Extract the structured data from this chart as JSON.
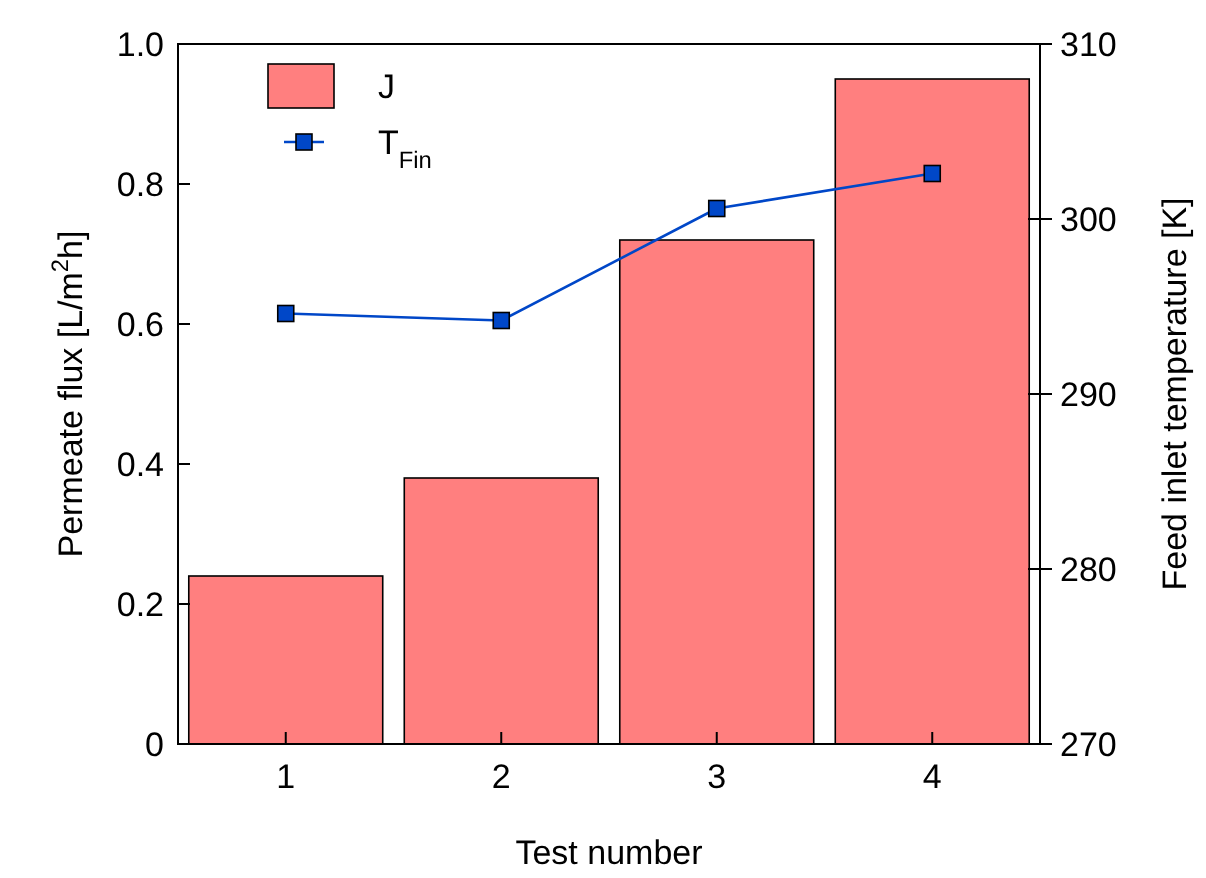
{
  "chart_data": {
    "type": "bar",
    "xlabel": "Test number",
    "ylabel": "Permeate flux [L/m$^{2}$h]",
    "y2label": "Feed inlet temperature [K]",
    "categories": [
      "1",
      "2",
      "3",
      "4"
    ],
    "series": [
      {
        "name": "J",
        "color": "#ff7f7f",
        "values": [
          0.24,
          0.38,
          0.72,
          0.95
        ]
      },
      {
        "name": "T$_{Fin}$",
        "type": "line",
        "axis": "y2",
        "color": "#0047c8",
        "marker": "square",
        "values": [
          294.6,
          294.2,
          300.6,
          302.6
        ]
      }
    ],
    "ylim": [
      0,
      1
    ],
    "yticks": [
      0,
      0.2,
      0.4,
      0.6,
      0.8,
      {
        "value": 1,
        "label": "1.0"
      }
    ],
    "y2lim": [
      270,
      310
    ],
    "y2ticks": [
      270,
      280,
      290,
      300,
      310
    ],
    "legend": "top left",
    "grid": false
  }
}
